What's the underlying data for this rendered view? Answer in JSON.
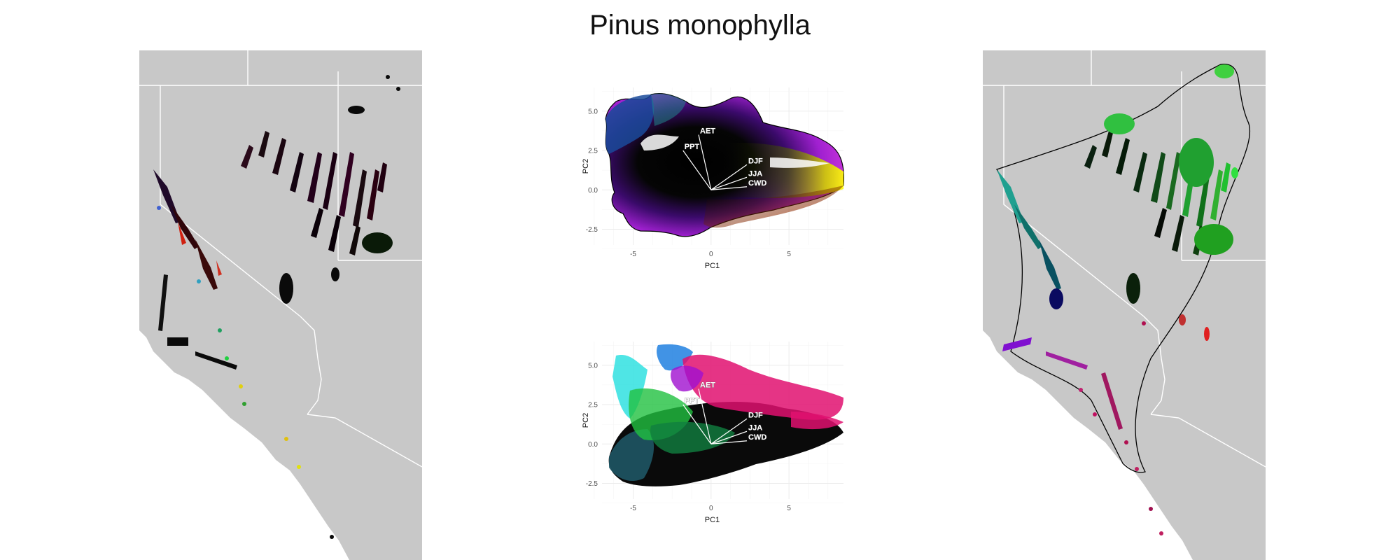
{
  "title": "Pinus monophylla",
  "pca_axes": {
    "xlabel": "PC1",
    "ylabel": "PC2",
    "x_ticks": [
      "-5",
      "0",
      "5"
    ],
    "y_ticks": [
      "5.0",
      "2.5",
      "0.0",
      "-2.5"
    ]
  },
  "variable_labels": [
    "AET",
    "PPT",
    "DJF",
    "JJA",
    "CWD"
  ],
  "colors": {
    "land": "#c8c8c8",
    "borders": "#ffffff",
    "hull": "#000000"
  },
  "chart_data": [
    {
      "type": "scatter",
      "panel": "pca-top",
      "title": "",
      "xlabel": "PC1",
      "ylabel": "PC2",
      "xlim": [
        -7,
        8.5
      ],
      "ylim": [
        -3.5,
        6.5
      ],
      "grid": true,
      "loadings": [
        {
          "name": "AET",
          "x": -0.8,
          "y": 3.5
        },
        {
          "name": "PPT",
          "x": -1.8,
          "y": 2.5
        },
        {
          "name": "DJF",
          "x": 2.3,
          "y": 1.6
        },
        {
          "name": "JJA",
          "x": 2.3,
          "y": 0.8
        },
        {
          "name": "CWD",
          "x": 2.3,
          "y": 0.2
        }
      ]
    },
    {
      "type": "scatter",
      "panel": "pca-bottom",
      "title": "",
      "xlabel": "PC1",
      "ylabel": "PC2",
      "xlim": [
        -7,
        8.5
      ],
      "ylim": [
        -3.5,
        6.5
      ],
      "grid": true,
      "loadings": [
        {
          "name": "AET",
          "x": -0.8,
          "y": 3.5
        },
        {
          "name": "PPT",
          "x": -1.8,
          "y": 2.5
        },
        {
          "name": "DJF",
          "x": 2.3,
          "y": 1.6
        },
        {
          "name": "JJA",
          "x": 2.3,
          "y": 0.8
        },
        {
          "name": "CWD",
          "x": 2.3,
          "y": 0.2
        }
      ]
    }
  ]
}
